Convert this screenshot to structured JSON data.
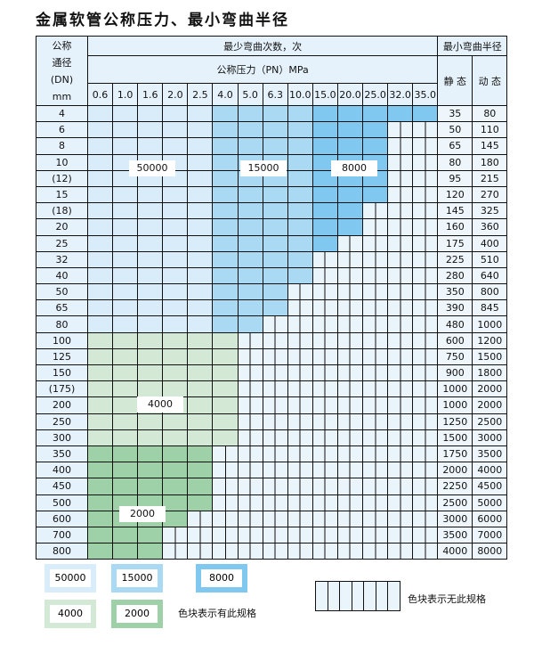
{
  "title": "金属软管公称压力、最小弯曲半径",
  "header": {
    "dn_lines": [
      "公称",
      "通径",
      "(DN)",
      "mm"
    ],
    "cycles": "最少弯曲次数，次",
    "pressure": "公称压力（PN）MPa",
    "radius": "最小弯曲半径",
    "static": "静 态",
    "dynamic": "动 态",
    "pressures": [
      "0.6",
      "1.0",
      "1.6",
      "2.0",
      "2.5",
      "4.0",
      "5.0",
      "6.3",
      "10.0",
      "15.0",
      "20.0",
      "25.0",
      "32.0",
      "35.0"
    ]
  },
  "rows": [
    {
      "dn": "4",
      "static": "35",
      "dynamic": "80",
      "available": 14,
      "group": "blue"
    },
    {
      "dn": "6",
      "static": "50",
      "dynamic": "110",
      "available": 12,
      "group": "blue"
    },
    {
      "dn": "8",
      "static": "65",
      "dynamic": "145",
      "available": 12,
      "group": "blue"
    },
    {
      "dn": "10",
      "static": "80",
      "dynamic": "180",
      "available": 12,
      "group": "blue"
    },
    {
      "dn": "(12)",
      "static": "95",
      "dynamic": "215",
      "available": 12,
      "group": "blue"
    },
    {
      "dn": "15",
      "static": "120",
      "dynamic": "270",
      "available": 12,
      "group": "blue"
    },
    {
      "dn": "(18)",
      "static": "145",
      "dynamic": "325",
      "available": 11,
      "group": "blue"
    },
    {
      "dn": "20",
      "static": "160",
      "dynamic": "360",
      "available": 11,
      "group": "blue"
    },
    {
      "dn": "25",
      "static": "175",
      "dynamic": "400",
      "available": 10,
      "group": "blue"
    },
    {
      "dn": "32",
      "static": "225",
      "dynamic": "510",
      "available": 9,
      "group": "blue"
    },
    {
      "dn": "40",
      "static": "280",
      "dynamic": "640",
      "available": 9,
      "group": "blue"
    },
    {
      "dn": "50",
      "static": "350",
      "dynamic": "800",
      "available": 8,
      "group": "blue"
    },
    {
      "dn": "65",
      "static": "390",
      "dynamic": "845",
      "available": 8,
      "group": "blue"
    },
    {
      "dn": "80",
      "static": "480",
      "dynamic": "1000",
      "available": 7,
      "group": "blue"
    },
    {
      "dn": "100",
      "static": "600",
      "dynamic": "1200",
      "available": 6,
      "group": "g1"
    },
    {
      "dn": "125",
      "static": "750",
      "dynamic": "1500",
      "available": 6,
      "group": "g1"
    },
    {
      "dn": "150",
      "static": "900",
      "dynamic": "1800",
      "available": 6,
      "group": "g1"
    },
    {
      "dn": "(175)",
      "static": "1000",
      "dynamic": "2000",
      "available": 6,
      "group": "g1"
    },
    {
      "dn": "200",
      "static": "1000",
      "dynamic": "2000",
      "available": 6,
      "group": "g1"
    },
    {
      "dn": "250",
      "static": "1250",
      "dynamic": "2500",
      "available": 6,
      "group": "g1"
    },
    {
      "dn": "300",
      "static": "1500",
      "dynamic": "3000",
      "available": 6,
      "group": "g1"
    },
    {
      "dn": "350",
      "static": "1750",
      "dynamic": "3500",
      "available": 5,
      "group": "g2"
    },
    {
      "dn": "400",
      "static": "2000",
      "dynamic": "4000",
      "available": 5,
      "group": "g2"
    },
    {
      "dn": "450",
      "static": "2250",
      "dynamic": "4500",
      "available": 5,
      "group": "g2"
    },
    {
      "dn": "500",
      "static": "2500",
      "dynamic": "5000",
      "available": 5,
      "group": "g2"
    },
    {
      "dn": "600",
      "static": "3000",
      "dynamic": "6000",
      "available": 4,
      "group": "g2"
    },
    {
      "dn": "700",
      "static": "3500",
      "dynamic": "7000",
      "available": 3,
      "group": "g2"
    },
    {
      "dn": "800",
      "static": "4000",
      "dynamic": "8000",
      "available": 3,
      "group": "g2"
    }
  ],
  "zone_labels": {
    "light_blue": "50000",
    "mid_blue": "15000",
    "dark_blue": "8000",
    "light_green": "4000",
    "dark_green": "2000"
  },
  "legend": {
    "has_spec": "色块表示有此规格",
    "no_spec": "色块表示无此规格"
  },
  "colors": {
    "light_blue": "#d8ecf9",
    "mid_blue": "#aad9f4",
    "dark_blue": "#80c8f0",
    "light_green": "#d3e9d6",
    "dark_green": "#9fd1a9",
    "unavailable": "#eaf4fb"
  }
}
